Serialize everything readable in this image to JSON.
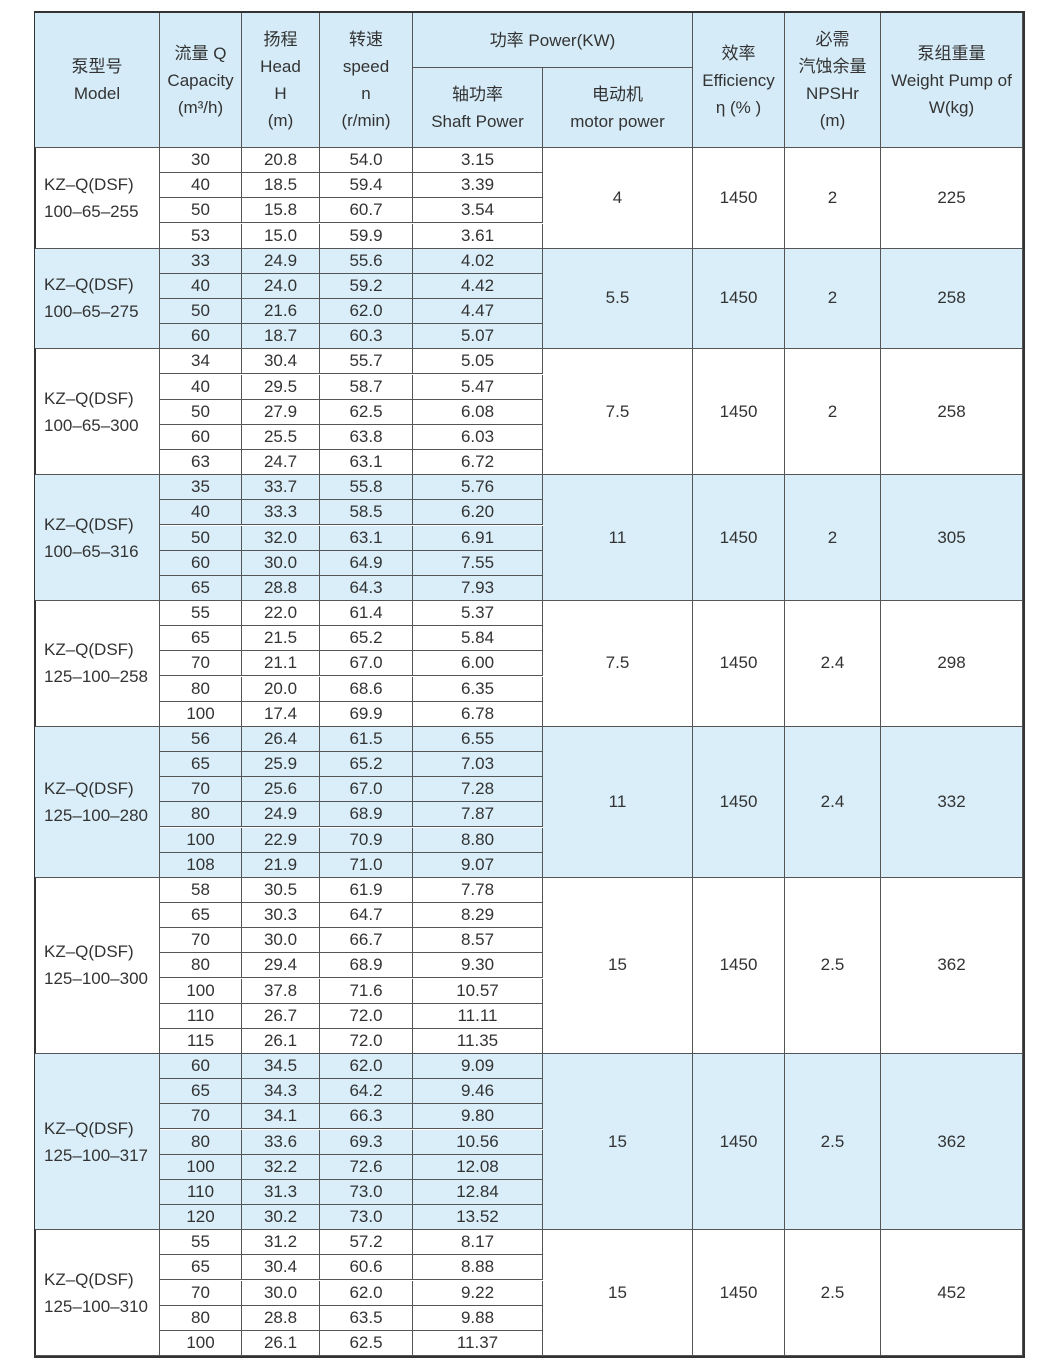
{
  "header": {
    "model": [
      "泵型号",
      "Model"
    ],
    "capacity": [
      "流量 Q",
      "Capacity",
      "(m³/h)"
    ],
    "head": [
      "扬程",
      "Head",
      "H",
      "(m)"
    ],
    "speed": [
      "转速",
      "speed",
      "n",
      "(r/min)"
    ],
    "power": [
      "功率 Power(KW)"
    ],
    "shaft_power": [
      "轴功率",
      "Shaft Power"
    ],
    "motor_power": [
      "电动机",
      "motor power"
    ],
    "efficiency": [
      "效率",
      "Efficiency",
      "η (% )"
    ],
    "npshr": [
      "必需",
      "汽蚀余量",
      "NPSHr",
      "(m)"
    ],
    "weight": [
      "泵组重量",
      "Weight Pump of",
      "W(kg)"
    ]
  },
  "groups": [
    {
      "model": [
        "KZ–Q(DSF)",
        "100–65–255"
      ],
      "rows": [
        [
          "30",
          "20.8",
          "54.0",
          "3.15"
        ],
        [
          "40",
          "18.5",
          "59.4",
          "3.39"
        ],
        [
          "50",
          "15.8",
          "60.7",
          "3.54"
        ],
        [
          "53",
          "15.0",
          "59.9",
          "3.61"
        ]
      ],
      "motor_power": "4",
      "efficiency": "1450",
      "npshr": "2",
      "weight": "225"
    },
    {
      "model": [
        "KZ–Q(DSF)",
        "100–65–275"
      ],
      "rows": [
        [
          "33",
          "24.9",
          "55.6",
          "4.02"
        ],
        [
          "40",
          "24.0",
          "59.2",
          "4.42"
        ],
        [
          "50",
          "21.6",
          "62.0",
          "4.47"
        ],
        [
          "60",
          "18.7",
          "60.3",
          "5.07"
        ]
      ],
      "motor_power": "5.5",
      "efficiency": "1450",
      "npshr": "2",
      "weight": "258"
    },
    {
      "model": [
        "KZ–Q(DSF)",
        "100–65–300"
      ],
      "rows": [
        [
          "34",
          "30.4",
          "55.7",
          "5.05"
        ],
        [
          "40",
          "29.5",
          "58.7",
          "5.47"
        ],
        [
          "50",
          "27.9",
          "62.5",
          "6.08"
        ],
        [
          "60",
          "25.5",
          "63.8",
          "6.03"
        ],
        [
          "63",
          "24.7",
          "63.1",
          "6.72"
        ]
      ],
      "motor_power": "7.5",
      "efficiency": "1450",
      "npshr": "2",
      "weight": "258"
    },
    {
      "model": [
        "KZ–Q(DSF)",
        "100–65–316"
      ],
      "rows": [
        [
          "35",
          "33.7",
          "55.8",
          "5.76"
        ],
        [
          "40",
          "33.3",
          "58.5",
          "6.20"
        ],
        [
          "50",
          "32.0",
          "63.1",
          "6.91"
        ],
        [
          "60",
          "30.0",
          "64.9",
          "7.55"
        ],
        [
          "65",
          "28.8",
          "64.3",
          "7.93"
        ]
      ],
      "motor_power": "11",
      "efficiency": "1450",
      "npshr": "2",
      "weight": "305"
    },
    {
      "model": [
        "KZ–Q(DSF)",
        "125–100–258"
      ],
      "rows": [
        [
          "55",
          "22.0",
          "61.4",
          "5.37"
        ],
        [
          "65",
          "21.5",
          "65.2",
          "5.84"
        ],
        [
          "70",
          "21.1",
          "67.0",
          "6.00"
        ],
        [
          "80",
          "20.0",
          "68.6",
          "6.35"
        ],
        [
          "100",
          "17.4",
          "69.9",
          "6.78"
        ]
      ],
      "motor_power": "7.5",
      "efficiency": "1450",
      "npshr": "2.4",
      "weight": "298"
    },
    {
      "model": [
        "KZ–Q(DSF)",
        "125–100–280"
      ],
      "rows": [
        [
          "56",
          "26.4",
          "61.5",
          "6.55"
        ],
        [
          "65",
          "25.9",
          "65.2",
          "7.03"
        ],
        [
          "70",
          "25.6",
          "67.0",
          "7.28"
        ],
        [
          "80",
          "24.9",
          "68.9",
          "7.87"
        ],
        [
          "100",
          "22.9",
          "70.9",
          "8.80"
        ],
        [
          "108",
          "21.9",
          "71.0",
          "9.07"
        ]
      ],
      "motor_power": "11",
      "efficiency": "1450",
      "npshr": "2.4",
      "weight": "332"
    },
    {
      "model": [
        "KZ–Q(DSF)",
        "125–100–300"
      ],
      "rows": [
        [
          "58",
          "30.5",
          "61.9",
          "7.78"
        ],
        [
          "65",
          "30.3",
          "64.7",
          "8.29"
        ],
        [
          "70",
          "30.0",
          "66.7",
          "8.57"
        ],
        [
          "80",
          "29.4",
          "68.9",
          "9.30"
        ],
        [
          "100",
          "37.8",
          "71.6",
          "10.57"
        ],
        [
          "110",
          "26.7",
          "72.0",
          "11.11"
        ],
        [
          "115",
          "26.1",
          "72.0",
          "11.35"
        ]
      ],
      "motor_power": "15",
      "efficiency": "1450",
      "npshr": "2.5",
      "weight": "362"
    },
    {
      "model": [
        "KZ–Q(DSF)",
        "125–100–317"
      ],
      "rows": [
        [
          "60",
          "34.5",
          "62.0",
          "9.09"
        ],
        [
          "65",
          "34.3",
          "64.2",
          "9.46"
        ],
        [
          "70",
          "34.1",
          "66.3",
          "9.80"
        ],
        [
          "80",
          "33.6",
          "69.3",
          "10.56"
        ],
        [
          "100",
          "32.2",
          "72.6",
          "12.08"
        ],
        [
          "110",
          "31.3",
          "73.0",
          "12.84"
        ],
        [
          "120",
          "30.2",
          "73.0",
          "13.52"
        ]
      ],
      "motor_power": "15",
      "efficiency": "1450",
      "npshr": "2.5",
      "weight": "362"
    },
    {
      "model": [
        "KZ–Q(DSF)",
        "125–100–310"
      ],
      "rows": [
        [
          "55",
          "31.2",
          "57.2",
          "8.17"
        ],
        [
          "65",
          "30.4",
          "60.6",
          "8.88"
        ],
        [
          "70",
          "30.0",
          "62.0",
          "9.22"
        ],
        [
          "80",
          "28.8",
          "63.5",
          "9.88"
        ],
        [
          "100",
          "26.1",
          "62.5",
          "11.37"
        ]
      ],
      "motor_power": "15",
      "efficiency": "1450",
      "npshr": "2.5",
      "weight": "452"
    }
  ]
}
